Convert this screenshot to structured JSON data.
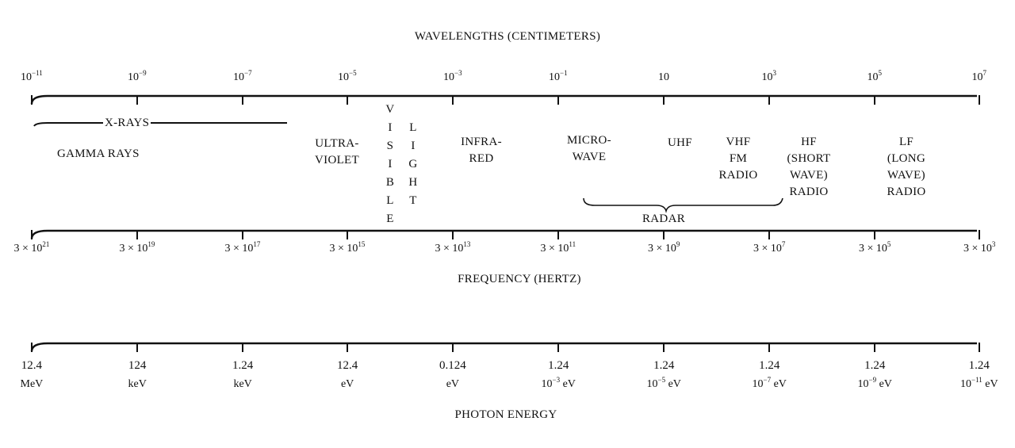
{
  "wavelength_title": "WAVELENGTHS (CENTIMETERS)",
  "wavelength_ticks": [
    {
      "base": "10",
      "exp": "−11"
    },
    {
      "base": "10",
      "exp": "−9"
    },
    {
      "base": "10",
      "exp": "−7"
    },
    {
      "base": "10",
      "exp": "−5"
    },
    {
      "base": "10",
      "exp": "−3"
    },
    {
      "base": "10",
      "exp": "−1"
    },
    {
      "base": "10",
      "exp": ""
    },
    {
      "base": "10",
      "exp": "3"
    },
    {
      "base": "10",
      "exp": "5"
    },
    {
      "base": "10",
      "exp": "7"
    }
  ],
  "bands": {
    "xrays": "X-RAYS",
    "gamma": "GAMMA RAYS",
    "ultraviolet": [
      "ULTRA-",
      "VIOLET"
    ],
    "visible": [
      "V",
      "I",
      "S",
      "I",
      "B",
      "L",
      "E"
    ],
    "light": [
      "L",
      "I",
      "G",
      "H",
      "T"
    ],
    "infrared": [
      "INFRA-",
      "RED"
    ],
    "microwave": [
      "MICRO-",
      "WAVE"
    ],
    "uhf": "UHF",
    "vhf": [
      "VHF",
      "FM",
      "RADIO"
    ],
    "hf": [
      "HF",
      "(SHORT",
      "WAVE)",
      "RADIO"
    ],
    "lf": [
      "LF",
      "(LONG",
      "WAVE)",
      "RADIO"
    ],
    "radar": "RADAR"
  },
  "frequency_ticks": [
    {
      "base": "3 × 10",
      "exp": "21"
    },
    {
      "base": "3 × 10",
      "exp": "19"
    },
    {
      "base": "3 × 10",
      "exp": "17"
    },
    {
      "base": "3 × 10",
      "exp": "15"
    },
    {
      "base": "3 × 10",
      "exp": "13"
    },
    {
      "base": "3 × 10",
      "exp": "11"
    },
    {
      "base": "3 × 10",
      "exp": "9"
    },
    {
      "base": "3 × 10",
      "exp": "7"
    },
    {
      "base": "3 × 10",
      "exp": "5"
    },
    {
      "base": "3 × 10",
      "exp": "3"
    }
  ],
  "frequency_title": "FREQUENCY (HERTZ)",
  "energy_ticks": [
    {
      "value": "12.4",
      "unit": "MeV",
      "exp": ""
    },
    {
      "value": "124",
      "unit": "keV",
      "exp": ""
    },
    {
      "value": "1.24",
      "unit": "keV",
      "exp": ""
    },
    {
      "value": "12.4",
      "unit": "eV",
      "exp": ""
    },
    {
      "value": "0.124",
      "unit": "eV",
      "exp": ""
    },
    {
      "value": "1.24",
      "unit": " eV",
      "exp": "−3"
    },
    {
      "value": "1.24",
      "unit": " eV",
      "exp": "−5"
    },
    {
      "value": "1.24",
      "unit": " eV",
      "exp": "−7"
    },
    {
      "value": "1.24",
      "unit": " eV",
      "exp": "−9"
    },
    {
      "value": "1.24",
      "unit": " eV",
      "exp": "−11"
    }
  ],
  "energy_title": "PHOTON ENERGY"
}
